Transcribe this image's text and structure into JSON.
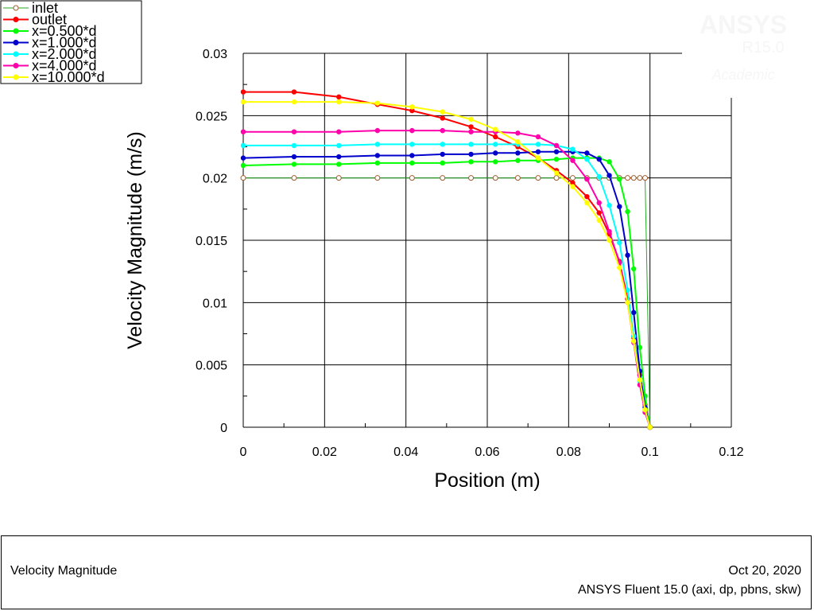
{
  "watermark": {
    "brand": "ANSYS",
    "version": "R15.0",
    "edition": "Academic"
  },
  "chart_data": {
    "type": "line",
    "title": "",
    "xlabel": "Position (m)",
    "ylabel": "Velocity Magnitude (m/s)",
    "xlim": [
      0,
      0.12
    ],
    "ylim": [
      0,
      0.03
    ],
    "xticks": [
      "0",
      "0.02",
      "0.04",
      "0.06",
      "0.08",
      "0.1",
      "0.12"
    ],
    "yticks": [
      "0",
      "0.005",
      "0.01",
      "0.015",
      "0.02",
      "0.025",
      "0.03"
    ],
    "grid": true,
    "legend_position": "top-left",
    "series": [
      {
        "name": "inlet",
        "color": "#a05a2c",
        "marker": "open-circle",
        "x": [
          0,
          0.0125,
          0.0235,
          0.033,
          0.0415,
          0.049,
          0.056,
          0.062,
          0.0675,
          0.0725,
          0.077,
          0.081,
          0.0845,
          0.0875,
          0.09,
          0.0925,
          0.0945,
          0.096,
          0.0975,
          0.0988,
          0.1
        ],
        "y": [
          0.02,
          0.02,
          0.02,
          0.02,
          0.02,
          0.02,
          0.02,
          0.02,
          0.02,
          0.02,
          0.02,
          0.02,
          0.02,
          0.02,
          0.02,
          0.02,
          0.02,
          0.02,
          0.02,
          0.02,
          0
        ]
      },
      {
        "name": "outlet",
        "color": "#ff0000",
        "marker": "dot",
        "x": [
          0,
          0.0125,
          0.0235,
          0.033,
          0.0415,
          0.049,
          0.056,
          0.062,
          0.0675,
          0.0725,
          0.077,
          0.081,
          0.0845,
          0.0875,
          0.09,
          0.0925,
          0.0945,
          0.096,
          0.0975,
          0.0988,
          0.1
        ],
        "y": [
          0.0269,
          0.0269,
          0.0265,
          0.0259,
          0.0254,
          0.0248,
          0.0241,
          0.0233,
          0.0225,
          0.0216,
          0.0206,
          0.0196,
          0.0185,
          0.0172,
          0.0155,
          0.0133,
          0.0103,
          0.0072,
          0.0042,
          0.0018,
          0
        ]
      },
      {
        "name": "x=0.500*d",
        "color": "#00ff00",
        "marker": "dot",
        "x": [
          0,
          0.0125,
          0.0235,
          0.033,
          0.0415,
          0.049,
          0.056,
          0.062,
          0.0675,
          0.0725,
          0.077,
          0.081,
          0.0845,
          0.0875,
          0.09,
          0.0925,
          0.0945,
          0.096,
          0.0975,
          0.0988,
          0.1
        ],
        "y": [
          0.021,
          0.0211,
          0.0211,
          0.0212,
          0.0212,
          0.0212,
          0.0213,
          0.0213,
          0.0214,
          0.0214,
          0.0215,
          0.0216,
          0.0216,
          0.0216,
          0.0213,
          0.0199,
          0.0173,
          0.0127,
          0.0064,
          0.0025,
          0
        ]
      },
      {
        "name": "x=1.000*d",
        "color": "#0000cc",
        "marker": "dot",
        "x": [
          0,
          0.0125,
          0.0235,
          0.033,
          0.0415,
          0.049,
          0.056,
          0.062,
          0.0675,
          0.0725,
          0.077,
          0.081,
          0.0845,
          0.0875,
          0.09,
          0.0925,
          0.0945,
          0.096,
          0.0975,
          0.0988,
          0.1
        ],
        "y": [
          0.0216,
          0.0217,
          0.0217,
          0.0218,
          0.0218,
          0.0219,
          0.0219,
          0.022,
          0.022,
          0.0221,
          0.0221,
          0.0221,
          0.022,
          0.0215,
          0.0202,
          0.0177,
          0.0138,
          0.0092,
          0.0045,
          0.0016,
          0
        ]
      },
      {
        "name": "x=2.000*d",
        "color": "#00ffff",
        "marker": "dot",
        "x": [
          0,
          0.0125,
          0.0235,
          0.033,
          0.0415,
          0.049,
          0.056,
          0.062,
          0.0675,
          0.0725,
          0.077,
          0.081,
          0.0845,
          0.0875,
          0.09,
          0.0925,
          0.0945,
          0.096,
          0.0975,
          0.0988,
          0.1
        ],
        "y": [
          0.0226,
          0.0226,
          0.0226,
          0.0227,
          0.0227,
          0.0227,
          0.0227,
          0.0227,
          0.0227,
          0.0227,
          0.0226,
          0.0223,
          0.0215,
          0.0201,
          0.0178,
          0.0148,
          0.011,
          0.0073,
          0.0037,
          0.0012,
          0
        ]
      },
      {
        "name": "x=4.000*d",
        "color": "#ff00aa",
        "marker": "dot",
        "x": [
          0,
          0.0125,
          0.0235,
          0.033,
          0.0415,
          0.049,
          0.056,
          0.062,
          0.0675,
          0.0725,
          0.077,
          0.081,
          0.0845,
          0.0875,
          0.09,
          0.0925,
          0.0945,
          0.096,
          0.0975,
          0.0988,
          0.1
        ],
        "y": [
          0.0237,
          0.0237,
          0.0237,
          0.0238,
          0.0238,
          0.0238,
          0.0237,
          0.0237,
          0.0236,
          0.0233,
          0.0226,
          0.0214,
          0.0199,
          0.018,
          0.0157,
          0.0132,
          0.01,
          0.0068,
          0.0034,
          0.0012,
          0
        ]
      },
      {
        "name": "x=10.000*d",
        "color": "#ffff00",
        "marker": "dot",
        "x": [
          0,
          0.0125,
          0.0235,
          0.033,
          0.0415,
          0.049,
          0.056,
          0.062,
          0.0675,
          0.0725,
          0.077,
          0.081,
          0.0845,
          0.0875,
          0.09,
          0.0925,
          0.0945,
          0.096,
          0.0975,
          0.0988,
          0.1
        ],
        "y": [
          0.0261,
          0.0261,
          0.0261,
          0.026,
          0.0257,
          0.0253,
          0.0247,
          0.0239,
          0.0229,
          0.0216,
          0.0204,
          0.0193,
          0.018,
          0.0166,
          0.015,
          0.0128,
          0.01,
          0.0069,
          0.0038,
          0.0014,
          0
        ]
      }
    ]
  },
  "footer": {
    "quantity": "Velocity Magnitude",
    "date": "Oct 20, 2020",
    "solver": "ANSYS Fluent 15.0 (axi, dp, pbns, skw)"
  }
}
